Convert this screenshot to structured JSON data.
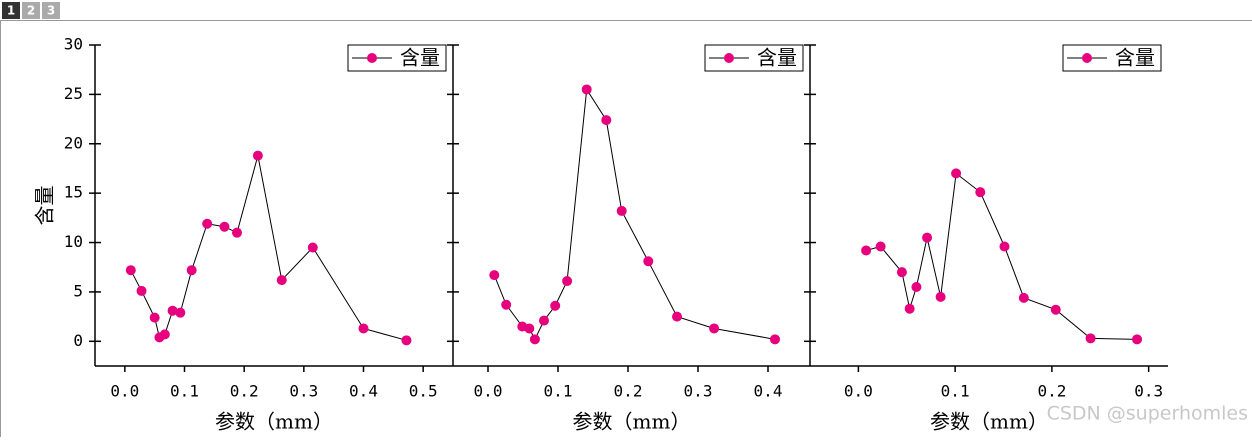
{
  "tabs": [
    "1",
    "2",
    "3"
  ],
  "watermark": "CSDN @superhomles",
  "chart_data": [
    {
      "type": "line",
      "ylabel": "含量",
      "xlabel": "参数（mm）",
      "legend": "upper right",
      "ytick_labels": true,
      "line_color": "#000000",
      "xlim": [
        -0.05,
        0.55
      ],
      "ylim": [
        -2.5,
        30
      ],
      "xticks": [
        {
          "value": 0,
          "label": "0.0"
        },
        0.1,
        0.2,
        0.3,
        0.4,
        0.5
      ],
      "yticks": [
        0,
        5,
        10,
        15,
        20,
        25,
        30
      ],
      "x": [
        0.01,
        0.028,
        0.05,
        0.058,
        0.067,
        0.08,
        0.093,
        0.112,
        0.138,
        0.167,
        0.188,
        0.223,
        0.263,
        0.315,
        0.4,
        0.472
      ],
      "series": [
        {
          "name": "含量",
          "color": "#e6007e",
          "values": [
            7.2,
            5.1,
            2.4,
            0.4,
            0.7,
            3.1,
            2.9,
            7.2,
            11.9,
            11.6,
            11.0,
            18.8,
            6.2,
            9.5,
            1.3,
            0.1
          ]
        }
      ]
    },
    {
      "type": "line",
      "xlabel": "参数（mm）",
      "legend": "upper right",
      "ytick_labels": false,
      "line_color": "#000000",
      "xlim": [
        -0.05,
        0.46
      ],
      "ylim": [
        -2.5,
        30
      ],
      "xticks": [
        {
          "value": 0,
          "label": "0.0"
        },
        0.1,
        0.2,
        0.3,
        0.4
      ],
      "yticks": [
        0,
        5,
        10,
        15,
        20,
        25,
        30
      ],
      "x": [
        0.009,
        0.026,
        0.049,
        0.059,
        0.067,
        0.08,
        0.096,
        0.113,
        0.141,
        0.169,
        0.191,
        0.229,
        0.27,
        0.323,
        0.41
      ],
      "series": [
        {
          "name": "含量",
          "color": "#e6007e",
          "values": [
            6.7,
            3.7,
            1.5,
            1.3,
            0.2,
            2.1,
            3.6,
            6.1,
            25.5,
            22.4,
            13.2,
            8.1,
            2.5,
            1.3,
            0.2
          ]
        }
      ]
    },
    {
      "type": "line",
      "xlabel": "参数（mm）",
      "legend": "upper right",
      "ytick_labels": false,
      "line_color": "#000000",
      "xlim": [
        -0.05,
        0.32
      ],
      "ylim": [
        -2.5,
        30
      ],
      "xticks": [
        {
          "value": 0,
          "label": "0.0"
        },
        0.1,
        0.2,
        0.3
      ],
      "yticks": [
        0,
        5,
        10,
        15,
        20,
        25,
        30
      ],
      "x": [
        0.008,
        0.023,
        0.045,
        0.053,
        0.06,
        0.071,
        0.085,
        0.101,
        0.126,
        0.151,
        0.171,
        0.204,
        0.24,
        0.288
      ],
      "series": [
        {
          "name": "含量",
          "color": "#e6007e",
          "values": [
            9.2,
            9.6,
            7.0,
            3.3,
            5.5,
            10.5,
            4.5,
            17.0,
            15.1,
            9.6,
            4.4,
            3.2,
            0.3,
            0.2
          ]
        }
      ]
    }
  ]
}
